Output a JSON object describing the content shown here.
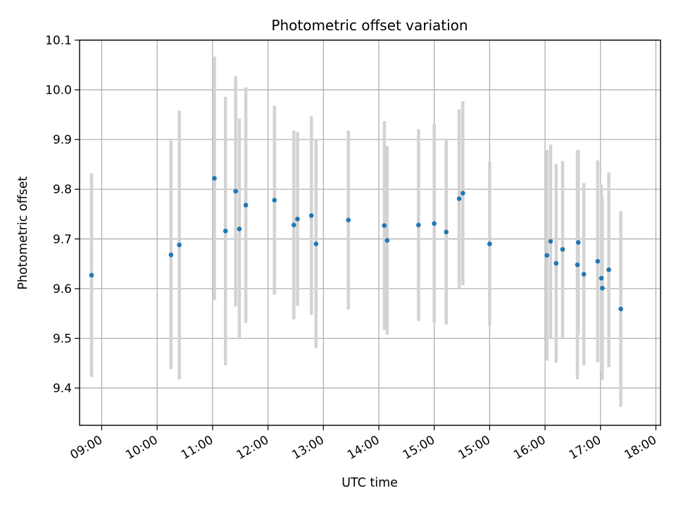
{
  "chart_data": {
    "type": "scatter",
    "title": "Photometric offset variation",
    "xlabel": "UTC time",
    "ylabel": "Photometric offset",
    "x_type": "time",
    "xlim": [
      "08:36",
      "19:05"
    ],
    "ylim": [
      9.325,
      10.1
    ],
    "x_ticks": [
      "09:00",
      "10:00",
      "11:00",
      "12:00",
      "13:00",
      "14:00",
      "15:00",
      "15:00",
      "16:00",
      "17:00",
      "18:00"
    ],
    "y_ticks": [
      "9.4",
      "9.5",
      "9.6",
      "9.7",
      "9.8",
      "9.9",
      "10.0",
      "10.1"
    ],
    "grid": true,
    "legend": "none",
    "marker_color": "#1f77b4",
    "errorbar_color": "#d3d3d3",
    "series": [
      {
        "points": [
          {
            "x": "08:49",
            "y": 9.627,
            "yerr": 0.205
          },
          {
            "x": "10:15",
            "y": 9.668,
            "yerr": 0.23
          },
          {
            "x": "10:24",
            "y": 9.688,
            "yerr": 0.27
          },
          {
            "x": "11:02",
            "y": 9.822,
            "yerr": 0.245
          },
          {
            "x": "11:14",
            "y": 9.716,
            "yerr": 0.27
          },
          {
            "x": "11:25",
            "y": 9.796,
            "yerr": 0.232
          },
          {
            "x": "11:29",
            "y": 9.72,
            "yerr": 0.222
          },
          {
            "x": "11:36",
            "y": 9.768,
            "yerr": 0.237
          },
          {
            "x": "12:07",
            "y": 9.778,
            "yerr": 0.19
          },
          {
            "x": "12:28",
            "y": 9.728,
            "yerr": 0.19
          },
          {
            "x": "12:32",
            "y": 9.74,
            "yerr": 0.175
          },
          {
            "x": "12:47",
            "y": 9.747,
            "yerr": 0.2
          },
          {
            "x": "12:52",
            "y": 9.69,
            "yerr": 0.21
          },
          {
            "x": "13:27",
            "y": 9.738,
            "yerr": 0.18
          },
          {
            "x": "14:06",
            "y": 9.727,
            "yerr": 0.21
          },
          {
            "x": "14:09",
            "y": 9.697,
            "yerr": 0.19
          },
          {
            "x": "14:43",
            "y": 9.728,
            "yerr": 0.193
          },
          {
            "x": "15:00",
            "y": 9.731,
            "yerr": 0.2
          },
          {
            "x": "15:13",
            "y": 9.714,
            "yerr": 0.186
          },
          {
            "x": "15:27",
            "y": 9.781,
            "yerr": 0.18
          },
          {
            "x": "15:31",
            "y": 9.792,
            "yerr": 0.185
          },
          {
            "x": "16:00",
            "y": 9.69,
            "yerr": 0.165
          },
          {
            "x": "17:02",
            "y": 9.667,
            "yerr": 0.212
          },
          {
            "x": "17:06",
            "y": 9.695,
            "yerr": 0.195
          },
          {
            "x": "17:12",
            "y": 9.651,
            "yerr": 0.2
          },
          {
            "x": "17:19",
            "y": 9.679,
            "yerr": 0.178
          },
          {
            "x": "17:35",
            "y": 9.648,
            "yerr": 0.23
          },
          {
            "x": "17:36",
            "y": 9.693,
            "yerr": 0.186
          },
          {
            "x": "17:42",
            "y": 9.629,
            "yerr": 0.183
          },
          {
            "x": "17:57",
            "y": 9.655,
            "yerr": 0.203
          },
          {
            "x": "18:01",
            "y": 9.621,
            "yerr": 0.188
          },
          {
            "x": "18:02",
            "y": 9.601,
            "yerr": 0.185
          },
          {
            "x": "18:09",
            "y": 9.638,
            "yerr": 0.196
          },
          {
            "x": "18:22",
            "y": 9.559,
            "yerr": 0.197
          }
        ]
      }
    ]
  }
}
